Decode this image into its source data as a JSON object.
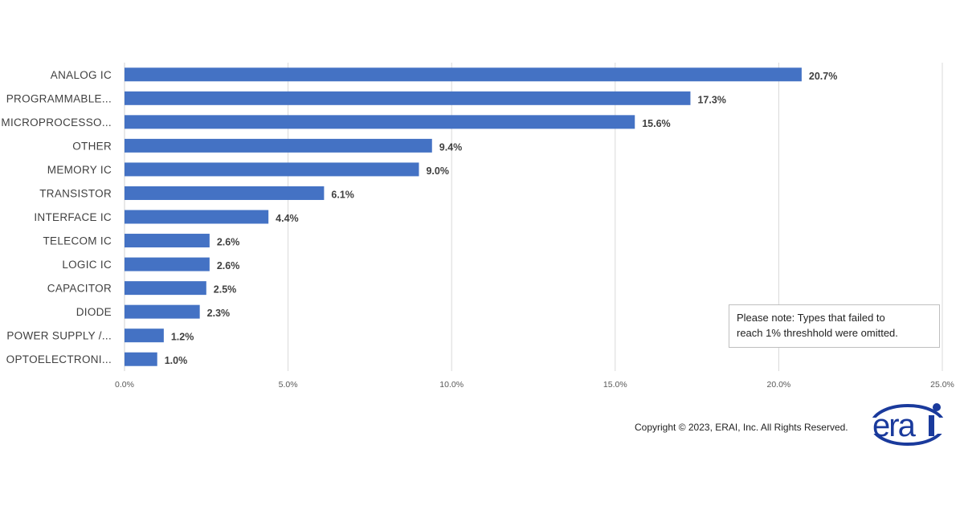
{
  "chart_data": {
    "type": "bar",
    "orientation": "horizontal",
    "categories": [
      "ANALOG IC",
      "PROGRAMMABLE...",
      "MICROPROCESSO...",
      "OTHER",
      "MEMORY IC",
      "TRANSISTOR",
      "INTERFACE IC",
      "TELECOM IC",
      "LOGIC IC",
      "CAPACITOR",
      "DIODE",
      "POWER SUPPLY /...",
      "OPTOELECTRONI..."
    ],
    "values": [
      20.7,
      17.3,
      15.6,
      9.4,
      9.0,
      6.1,
      4.4,
      2.6,
      2.6,
      2.5,
      2.3,
      1.2,
      1.0
    ],
    "value_labels": [
      "20.7%",
      "17.3%",
      "15.6%",
      "9.4%",
      "9.0%",
      "6.1%",
      "4.4%",
      "2.6%",
      "2.6%",
      "2.5%",
      "2.3%",
      "1.2%",
      "1.0%"
    ],
    "xlim": [
      0,
      25
    ],
    "xticks": [
      "0.0%",
      "5.0%",
      "10.0%",
      "15.0%",
      "20.0%",
      "25.0%"
    ],
    "grid": true,
    "bar_color": "#4472c4",
    "xlabel": "",
    "ylabel": "",
    "title": ""
  },
  "note": {
    "line1": "Please note: Types that failed to",
    "line2": "reach 1% threshhold were omitted."
  },
  "copyright": "Copyright © 2023, ERAI, Inc.  All Rights Reserved.",
  "logo_text": "erai",
  "logo_color": "#1a3a9c"
}
